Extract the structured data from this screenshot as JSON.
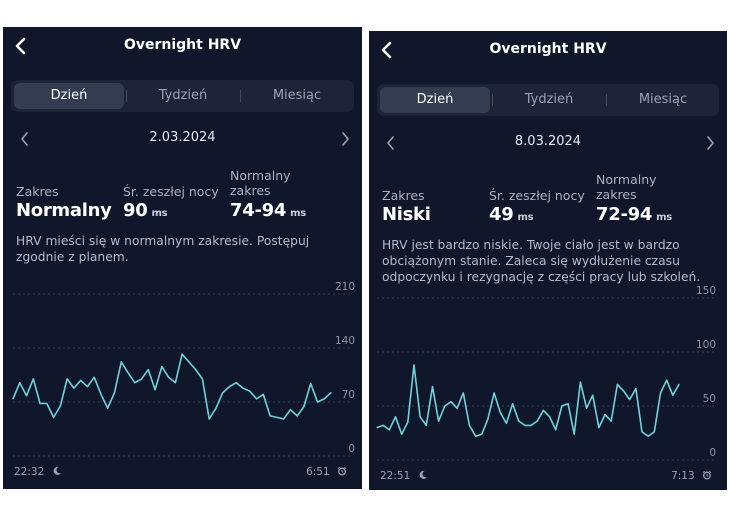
{
  "panels": [
    {
      "title": "Overnight HRV",
      "tabs": [
        "Dzień",
        "Tydzień",
        "Miesiąc"
      ],
      "active_tab": 0,
      "date": "2.03.2024",
      "stats": {
        "range_label": "Zakres",
        "range_value": "Normalny",
        "avg_label": "Śr. zeszłej nocy",
        "avg_value": "90",
        "avg_unit": "ms",
        "normal_label_1": "Normalny",
        "normal_label_2": "zakres",
        "normal_value": "74-94",
        "normal_unit": "ms"
      },
      "description_lines": [
        "HRV mieści się w normalnym zakresie. Postępuj",
        "zgodnie z planem."
      ],
      "start_time": "22:32",
      "end_time": "6:51",
      "colors": {
        "line": "#6fd3da",
        "grid": "#3a4157"
      },
      "chart_data": {
        "type": "line",
        "title": "",
        "xlabel": "",
        "ylabel": "",
        "ylim": [
          0,
          210
        ],
        "yticks": [
          210,
          140,
          70,
          0
        ],
        "values": [
          74,
          95,
          78,
          100,
          68,
          68,
          50,
          65,
          100,
          88,
          98,
          90,
          102,
          80,
          62,
          82,
          122,
          108,
          95,
          100,
          112,
          86,
          116,
          102,
          95,
          132,
          122,
          112,
          100,
          48,
          62,
          82,
          90,
          95,
          88,
          84,
          74,
          80,
          52,
          50,
          48,
          60,
          52,
          64,
          94,
          70,
          74,
          82
        ]
      }
    },
    {
      "title": "Overnight HRV",
      "tabs": [
        "Dzień",
        "Tydzień",
        "Miesiąc"
      ],
      "active_tab": 0,
      "date": "8.03.2024",
      "stats": {
        "range_label": "Zakres",
        "range_value": "Niski",
        "avg_label": "Śr. zeszłej nocy",
        "avg_value": "49",
        "avg_unit": "ms",
        "normal_label_1": "Normalny",
        "normal_label_2": "zakres",
        "normal_value": "72-94",
        "normal_unit": "ms"
      },
      "description_lines": [
        "HRV jest bardzo niskie. Twoje ciało jest w bardzo",
        "obciążonym stanie. Zaleca się wydłużenie czasu",
        "odpoczynku i rezygnację z części pracy lub szkoleń."
      ],
      "start_time": "22:51",
      "end_time": "7:13",
      "colors": {
        "line": "#6fd3da",
        "grid": "#3a4157"
      },
      "chart_data": {
        "type": "line",
        "title": "",
        "xlabel": "",
        "ylabel": "",
        "ylim": [
          0,
          150
        ],
        "yticks": [
          150,
          100,
          50,
          0
        ],
        "values": [
          30,
          32,
          28,
          40,
          24,
          35,
          88,
          40,
          32,
          68,
          36,
          50,
          54,
          48,
          62,
          32,
          22,
          24,
          38,
          62,
          44,
          34,
          52,
          36,
          32,
          32,
          36,
          46,
          40,
          28,
          50,
          52,
          24,
          72,
          48,
          60,
          30,
          42,
          36,
          70,
          64,
          56,
          66,
          26,
          22,
          26,
          62,
          74,
          60,
          70
        ]
      }
    }
  ]
}
